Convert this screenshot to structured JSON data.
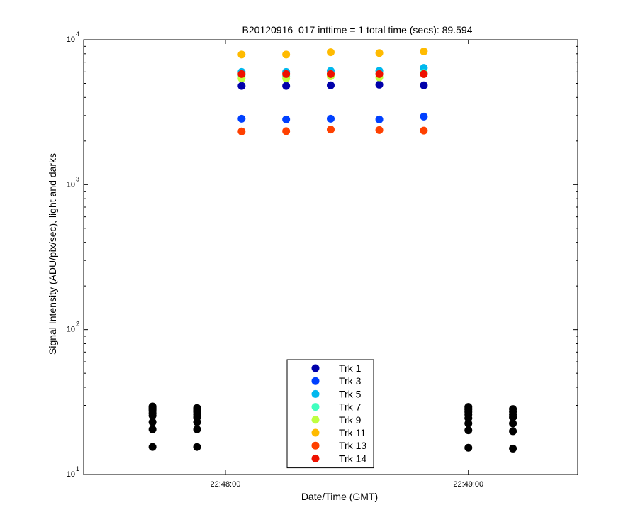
{
  "chart_data": {
    "type": "scatter",
    "title": "B20120916_017 inttime = 1 total time (secs): 89.594",
    "xlabel": "Date/Time (GMT)",
    "ylabel": "Signal Intensity (ADU/pix/sec), light and darks",
    "y_scale": "log",
    "ylim": [
      10,
      10000
    ],
    "xlim": [
      "22:47:25",
      "22:49:27"
    ],
    "x_ticks": [
      "22:48:00",
      "22:49:00"
    ],
    "y_ticks": [
      {
        "base": "10",
        "exp": "1",
        "value": 10
      },
      {
        "base": "10",
        "exp": "2",
        "value": 100
      },
      {
        "base": "10",
        "exp": "3",
        "value": 1000
      },
      {
        "base": "10",
        "exp": "4",
        "value": 10000
      }
    ],
    "legend_position": "bottom-center",
    "grid": false,
    "marker": "filled-circle",
    "light_times": [
      "22:48:04",
      "22:48:15",
      "22:48:26",
      "22:48:38",
      "22:48:49"
    ],
    "series": [
      {
        "name": "Trk 1",
        "color": "#0000aa",
        "y": [
          4800,
          4800,
          4850,
          4900,
          4850
        ]
      },
      {
        "name": "Trk 3",
        "color": "#0040ff",
        "y": [
          2850,
          2820,
          2850,
          2820,
          2950
        ]
      },
      {
        "name": "Trk 5",
        "color": "#00b8ee",
        "y": [
          6000,
          6000,
          6100,
          6100,
          6400
        ]
      },
      {
        "name": "Trk 7",
        "color": "#40ffbf",
        "y": [
          5700,
          5600,
          5800,
          5800,
          5900
        ]
      },
      {
        "name": "Trk 9",
        "color": "#bfff40",
        "y": [
          5400,
          5400,
          5600,
          5500,
          5800
        ]
      },
      {
        "name": "Trk 11",
        "color": "#ffbb00",
        "y": [
          7900,
          7900,
          8200,
          8100,
          8300
        ]
      },
      {
        "name": "Trk 13",
        "color": "#ff4000",
        "y": [
          2330,
          2340,
          2400,
          2380,
          2360
        ]
      },
      {
        "name": "Trk 14",
        "color": "#ee1100",
        "y": [
          5800,
          5800,
          5800,
          5800,
          5800
        ]
      }
    ],
    "darks": {
      "color": "#000000",
      "times": [
        "22:47:42",
        "22:47:53",
        "22:49:00",
        "22:49:11"
      ],
      "y": [
        [
          15.5,
          20.5,
          23,
          25.5,
          26.5,
          27.5,
          28,
          28.5,
          29,
          29.5
        ],
        [
          15.5,
          20.5,
          23,
          24.8,
          26,
          27,
          27.8,
          28.3,
          28.8
        ],
        [
          15.3,
          20.2,
          22.5,
          24.5,
          26,
          27,
          28,
          28.6,
          29.3
        ],
        [
          15.1,
          19.9,
          22.5,
          24.8,
          26,
          27.2,
          28.3
        ]
      ]
    }
  }
}
